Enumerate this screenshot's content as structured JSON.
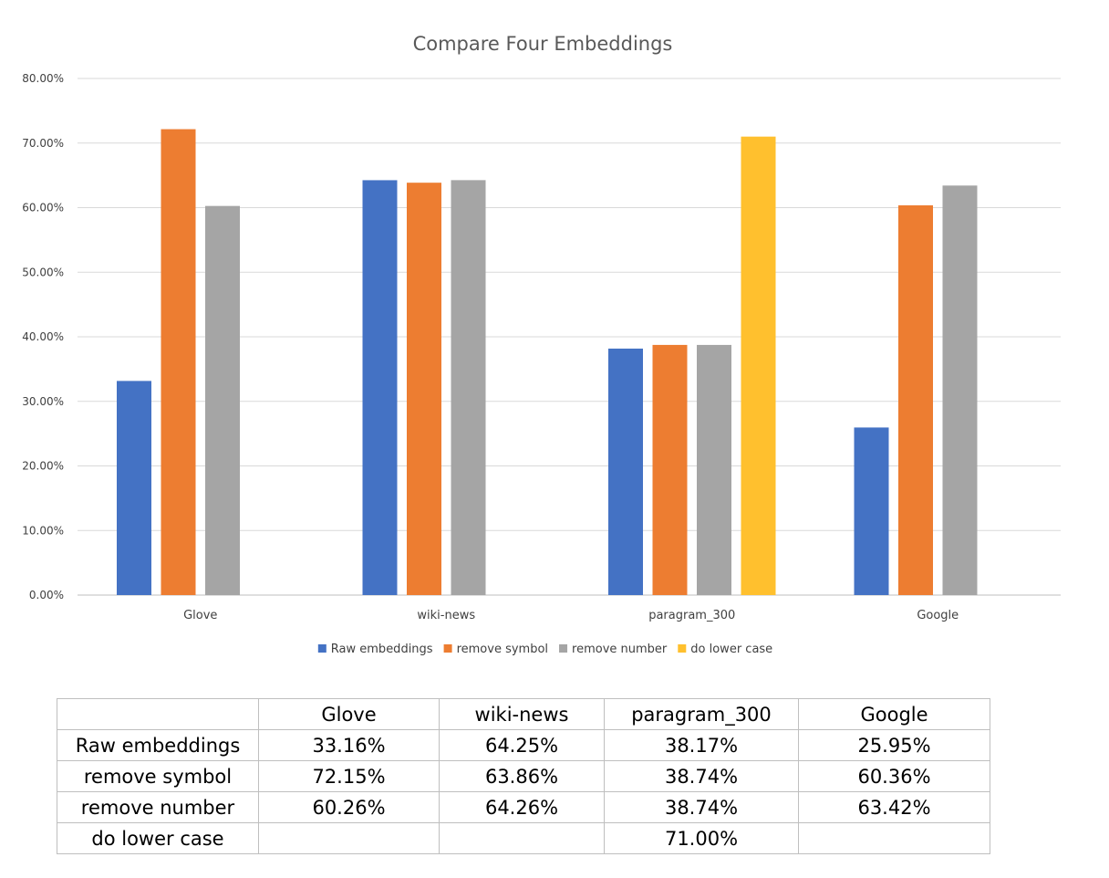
{
  "chart_data": {
    "type": "bar",
    "title": "Compare Four Embeddings",
    "xlabel": "",
    "ylabel": "",
    "categories": [
      "Glove",
      "wiki-news",
      "paragram_300",
      "Google"
    ],
    "series": [
      {
        "name": "Raw embeddings",
        "color": "#4472c4",
        "values": [
          33.16,
          64.25,
          38.17,
          25.95
        ]
      },
      {
        "name": "remove symbol",
        "color": "#ed7d31",
        "values": [
          72.15,
          63.86,
          38.74,
          60.36
        ]
      },
      {
        "name": "remove number",
        "color": "#a5a5a5",
        "values": [
          60.26,
          64.26,
          38.74,
          63.42
        ]
      },
      {
        "name": "do lower case",
        "color": "#ffc02e",
        "values": [
          null,
          null,
          71.0,
          null
        ]
      }
    ],
    "ylim": [
      0,
      80
    ],
    "yticks": [
      "0.00%",
      "10.00%",
      "20.00%",
      "30.00%",
      "40.00%",
      "50.00%",
      "60.00%",
      "70.00%",
      "80.00%"
    ],
    "grid": true,
    "legend_position": "bottom"
  },
  "table": {
    "header": [
      "",
      "Glove",
      "wiki-news",
      "paragram_300",
      "Google"
    ],
    "rows": [
      [
        "Raw embeddings",
        "33.16%",
        "64.25%",
        "38.17%",
        "25.95%"
      ],
      [
        "remove symbol",
        "72.15%",
        "63.86%",
        "38.74%",
        "60.36%"
      ],
      [
        "remove number",
        "60.26%",
        "64.26%",
        "38.74%",
        "63.42%"
      ],
      [
        "do lower case",
        "",
        "",
        "71.00%",
        ""
      ]
    ]
  }
}
